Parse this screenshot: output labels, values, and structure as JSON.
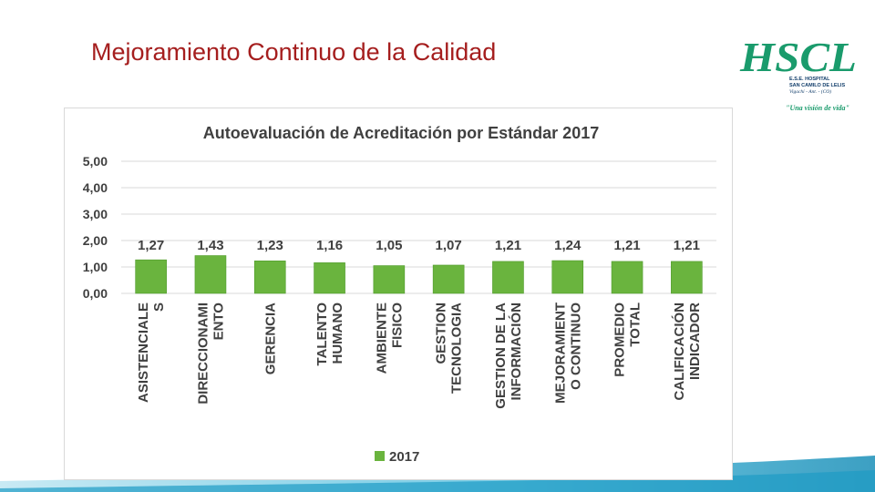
{
  "slide": {
    "title": "Mejoramiento Continuo de la Calidad"
  },
  "logo": {
    "mark": "HSCL",
    "line1": "E.S.E. HOSPITAL",
    "line2": "SAN CAMILO DE LELIS",
    "line3": "Vigachí - Ant. - (CO)",
    "slogan": "\"Una visión de vida\""
  },
  "colors": {
    "title": "#a51e1e",
    "bar": "#6ab43e",
    "bar_dark": "#4e9a2a",
    "logo_green": "#1a9b6c",
    "wave": "#2aa6c9"
  },
  "chart_data": {
    "type": "bar",
    "title": "Autoevaluación de Acreditación por Estándar 2017",
    "categories": [
      [
        "ASISTENCIALE",
        "S"
      ],
      [
        "DIRECCIONAMI",
        "ENTO"
      ],
      [
        "GERENCIA"
      ],
      [
        "TALENTO",
        "HUMANO"
      ],
      [
        "AMBIENTE",
        "FISICO"
      ],
      [
        "GESTION",
        "TECNOLOGIA"
      ],
      [
        "GESTION DE LA",
        "INFORMACIÓN"
      ],
      [
        "MEJORAMIENT",
        "O CONTINUO"
      ],
      [
        "PROMEDIO",
        "TOTAL"
      ],
      [
        "CALIFICACIÓN",
        "INDICADOR"
      ]
    ],
    "series": [
      {
        "name": "2017",
        "values": [
          1.27,
          1.43,
          1.23,
          1.16,
          1.05,
          1.07,
          1.21,
          1.24,
          1.21,
          1.21
        ],
        "labels": [
          "1,27",
          "1,43",
          "1,23",
          "1,16",
          "1,05",
          "1,07",
          "1,21",
          "1,24",
          "1,21",
          "1,21"
        ]
      }
    ],
    "y_ticks": [
      0,
      1,
      2,
      3,
      4,
      5
    ],
    "y_tick_labels": [
      "0,00",
      "1,00",
      "2,00",
      "3,00",
      "4,00",
      "5,00"
    ],
    "ylim": [
      0,
      5
    ],
    "grid": true,
    "legend_position": "bottom"
  }
}
